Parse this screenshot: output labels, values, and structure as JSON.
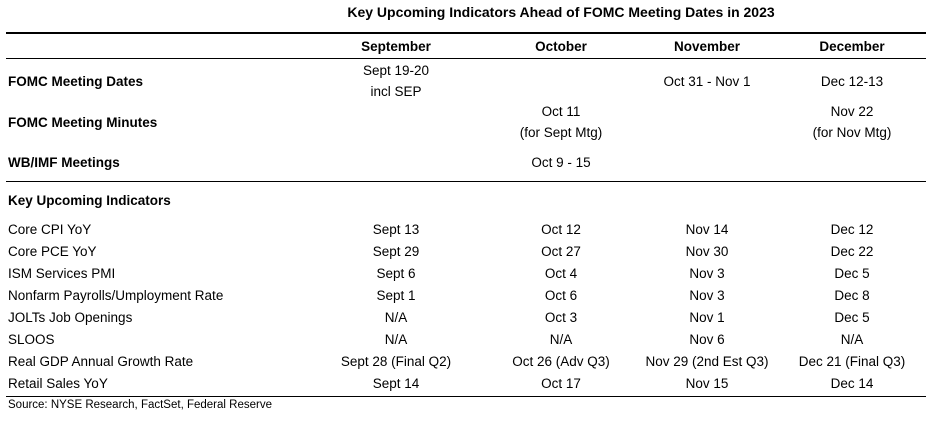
{
  "title": "Key Upcoming Indicators Ahead of FOMC Meeting Dates in 2023",
  "columns": [
    "September",
    "October",
    "November",
    "December"
  ],
  "meetings": [
    {
      "label": "FOMC Meeting Dates",
      "values": [
        [
          "Sept 19-20",
          "incl SEP"
        ],
        [],
        [
          "Oct 31 - Nov 1"
        ],
        [
          "Dec 12-13"
        ]
      ]
    },
    {
      "label": "FOMC Meeting Minutes",
      "values": [
        [],
        [
          "Oct 11",
          "(for Sept Mtg)"
        ],
        [],
        [
          "Nov 22",
          "(for Nov Mtg)"
        ]
      ]
    },
    {
      "label": "WB/IMF Meetings",
      "values": [
        [],
        [
          "Oct 9 - 15"
        ],
        [],
        []
      ]
    }
  ],
  "indicators_header": "Key Upcoming Indicators",
  "indicators": [
    {
      "label": "Core CPI YoY",
      "values": [
        "Sept 13",
        "Oct 12",
        "Nov 14",
        "Dec 12"
      ]
    },
    {
      "label": "Core PCE YoY",
      "values": [
        "Sept 29",
        "Oct 27",
        "Nov 30",
        "Dec 22"
      ]
    },
    {
      "label": "ISM Services PMI",
      "values": [
        "Sept 6",
        "Oct 4",
        "Nov 3",
        "Dec 5"
      ]
    },
    {
      "label": "Nonfarm Payrolls/Umployment Rate",
      "values": [
        "Sept 1",
        "Oct 6",
        "Nov 3",
        "Dec 8"
      ]
    },
    {
      "label": "JOLTs Job Openings",
      "values": [
        "N/A",
        "Oct 3",
        "Nov 1",
        "Dec 5"
      ]
    },
    {
      "label": "SLOOS",
      "values": [
        "N/A",
        "N/A",
        "Nov 6",
        "N/A"
      ]
    },
    {
      "label": "Real GDP Annual Growth Rate",
      "values": [
        "Sept 28 (Final Q2)",
        "Oct 26 (Adv Q3)",
        "Nov 29 (2nd Est Q3)",
        "Dec 21 (Final Q3)"
      ]
    },
    {
      "label": "Retail Sales YoY",
      "values": [
        "Sept 14",
        "Oct 17",
        "Nov 15",
        "Dec 14"
      ]
    }
  ],
  "source": "Source: NYSE Research, FactSet, Federal Reserve"
}
